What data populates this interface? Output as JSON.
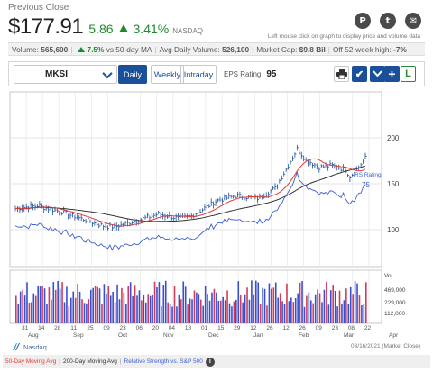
{
  "header": {
    "prev_close_label": "Previous Close",
    "price": "$177.91",
    "change": "5.86",
    "change_pct": "3.41%",
    "exchange": "NASDAQ",
    "hint": "Left mouse click on graph to display price and volume data"
  },
  "share": [
    {
      "name": "pinterest-icon",
      "glyph": "P"
    },
    {
      "name": "twitter-icon",
      "glyph": "t"
    },
    {
      "name": "email-icon",
      "glyph": "✉"
    }
  ],
  "stats": {
    "volume_label": "Volume:",
    "volume": "565,600",
    "vs_ma_pct": "7.5%",
    "vs_ma_label": "vs 50-day MA",
    "avg_vol_label": "Avg Daily Volume:",
    "avg_vol": "526,100",
    "mcap_label": "Market Cap:",
    "mcap": "$9.8 Bil",
    "off_high_label": "Off 52-week high:",
    "off_high": "-7%"
  },
  "toolbar": {
    "ticker": "MKSI",
    "tabs": [
      "Daily",
      "Weekly",
      "Intraday"
    ],
    "eps_label": "EPS Rating",
    "eps_value": "95"
  },
  "chart_data": {
    "type": "line",
    "price_ticks": [
      200,
      150,
      100
    ],
    "volume_ticks": [
      "Vol",
      "469,000",
      "229,000",
      "112,000"
    ],
    "x_labels": [
      "31",
      "14",
      "28",
      "11",
      "25",
      "09",
      "23",
      "06",
      "20",
      "04",
      "18",
      "01",
      "15",
      "29",
      "12",
      "26",
      "12",
      "26",
      "09",
      "23",
      "08",
      "22"
    ],
    "month_labels": [
      "Aug",
      "Sep",
      "Oct",
      "Nov",
      "Dec",
      "Jan",
      "Feb",
      "Mar",
      "Apr"
    ],
    "rs_label": "RS Rating",
    "rs_value": "75",
    "colors": {
      "price": "#1a4f9a",
      "ma50": "#e03a3a",
      "ma200": "#333333",
      "rs": "#3d5fcf"
    }
  },
  "footer": {
    "source": "Nasdaq",
    "date": "03/16/2021 (Market Close)",
    "legend": {
      "ma50": "50-Day Moving Avg",
      "ma200": "200-Day Moving Avg",
      "rs": "Relative Strength vs. S&P 500"
    }
  }
}
